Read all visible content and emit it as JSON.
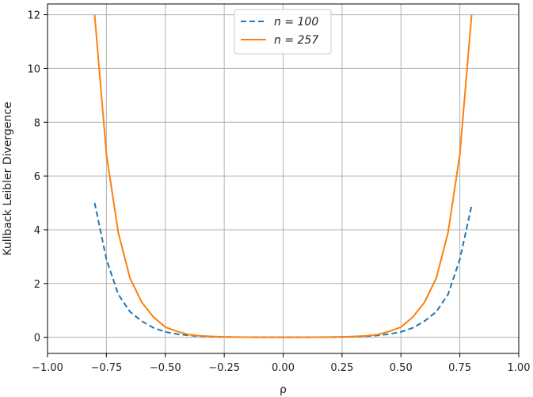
{
  "chart_data": {
    "type": "line",
    "title": "",
    "xlabel": "ρ",
    "ylabel": "Kullback Leibler Divergence",
    "xlim": [
      -1.0,
      1.0
    ],
    "ylim": [
      -0.6,
      12.4
    ],
    "xticks": [
      -1.0,
      -0.75,
      -0.5,
      -0.25,
      0.0,
      0.25,
      0.5,
      0.75,
      1.0
    ],
    "xtick_labels": [
      "−1.00",
      "−0.75",
      "−0.50",
      "−0.25",
      "0.00",
      "0.25",
      "0.50",
      "0.75",
      "1.00"
    ],
    "yticks": [
      0,
      2,
      4,
      6,
      8,
      10,
      12
    ],
    "ytick_labels": [
      "0",
      "2",
      "4",
      "6",
      "8",
      "10",
      "12"
    ],
    "grid": true,
    "legend_position": "top-center",
    "x": [
      -0.8,
      -0.75,
      -0.7,
      -0.65,
      -0.6,
      -0.55,
      -0.5,
      -0.45,
      -0.4,
      -0.35,
      -0.3,
      -0.25,
      -0.2,
      -0.15,
      -0.1,
      -0.05,
      0.0,
      0.05,
      0.1,
      0.15,
      0.2,
      0.25,
      0.3,
      0.35,
      0.4,
      0.45,
      0.5,
      0.55,
      0.6,
      0.65,
      0.7,
      0.75,
      0.8
    ],
    "series": [
      {
        "name": "n = 100",
        "legend_label": "n = 100",
        "color": "#1f77b4",
        "style": "dashed",
        "values": [
          5.0,
          2.9,
          1.6,
          0.95,
          0.6,
          0.35,
          0.2,
          0.12,
          0.07,
          0.04,
          0.02,
          0.01,
          0.005,
          0.003,
          0.001,
          0.0,
          0.0,
          0.0,
          0.001,
          0.003,
          0.005,
          0.01,
          0.02,
          0.04,
          0.07,
          0.12,
          0.2,
          0.35,
          0.6,
          0.95,
          1.6,
          2.9,
          4.9
        ]
      },
      {
        "name": "n = 257",
        "legend_label": "n = 257",
        "color": "#ff7f0e",
        "style": "solid",
        "values": [
          12.0,
          6.8,
          3.9,
          2.2,
          1.3,
          0.75,
          0.38,
          0.22,
          0.1,
          0.05,
          0.03,
          0.015,
          0.008,
          0.004,
          0.002,
          0.0,
          0.0,
          0.0,
          0.002,
          0.004,
          0.008,
          0.015,
          0.03,
          0.05,
          0.1,
          0.22,
          0.38,
          0.75,
          1.3,
          2.2,
          3.9,
          6.8,
          12.0
        ]
      }
    ]
  }
}
